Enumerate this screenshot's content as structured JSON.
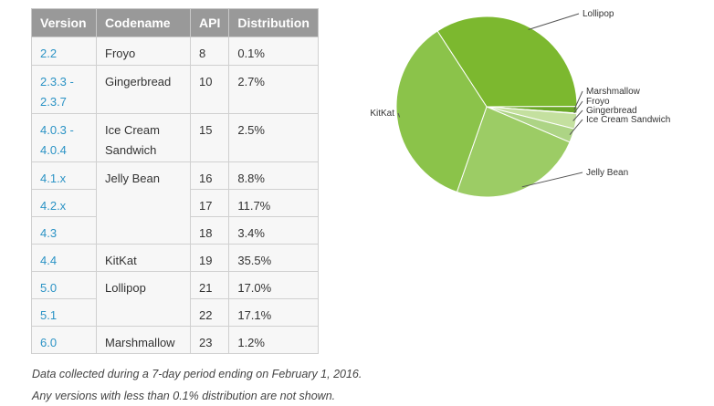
{
  "table": {
    "headers": [
      "Version",
      "Codename",
      "API",
      "Distribution"
    ],
    "rows": [
      {
        "version": "2.2",
        "codename": "Froyo",
        "api": "8",
        "distribution": "0.1%"
      },
      {
        "version": "2.3.3 -\n2.3.7",
        "codename": "Gingerbread",
        "api": "10",
        "distribution": "2.7%"
      },
      {
        "version": "4.0.3 -\n4.0.4",
        "codename": "Ice Cream\nSandwich",
        "api": "15",
        "distribution": "2.5%"
      },
      {
        "version": "4.1.x",
        "codename": "Jelly Bean",
        "api": "16",
        "distribution": "8.8%"
      },
      {
        "version": "4.2.x",
        "codename": "",
        "api": "17",
        "distribution": "11.7%"
      },
      {
        "version": "4.3",
        "codename": "",
        "api": "18",
        "distribution": "3.4%"
      },
      {
        "version": "4.4",
        "codename": "KitKat",
        "api": "19",
        "distribution": "35.5%"
      },
      {
        "version": "5.0",
        "codename": "Lollipop",
        "api": "21",
        "distribution": "17.0%"
      },
      {
        "version": "5.1",
        "codename": "",
        "api": "22",
        "distribution": "17.1%"
      },
      {
        "version": "6.0",
        "codename": "Marshmallow",
        "api": "23",
        "distribution": "1.2%"
      }
    ]
  },
  "notes": [
    "Data collected during a 7-day period ending on February 1, 2016.",
    "Any versions with less than 0.1% distribution are not shown."
  ],
  "chart_data": {
    "type": "pie",
    "slices": [
      {
        "label": "Lollipop",
        "value": 34.1,
        "color": "#7cb82f"
      },
      {
        "label": "Marshmallow",
        "value": 1.2,
        "color": "#6aa728"
      },
      {
        "label": "Froyo",
        "value": 0.1,
        "color": "#b6d98c"
      },
      {
        "label": "Gingerbread",
        "value": 2.7,
        "color": "#c4e09f"
      },
      {
        "label": "Ice Cream Sandwich",
        "value": 2.5,
        "color": "#add485"
      },
      {
        "label": "Jelly Bean",
        "value": 23.9,
        "color": "#9ccc65"
      },
      {
        "label": "KitKat",
        "value": 35.5,
        "color": "#8bc34a"
      }
    ],
    "legend": "callout labels around the pie"
  }
}
